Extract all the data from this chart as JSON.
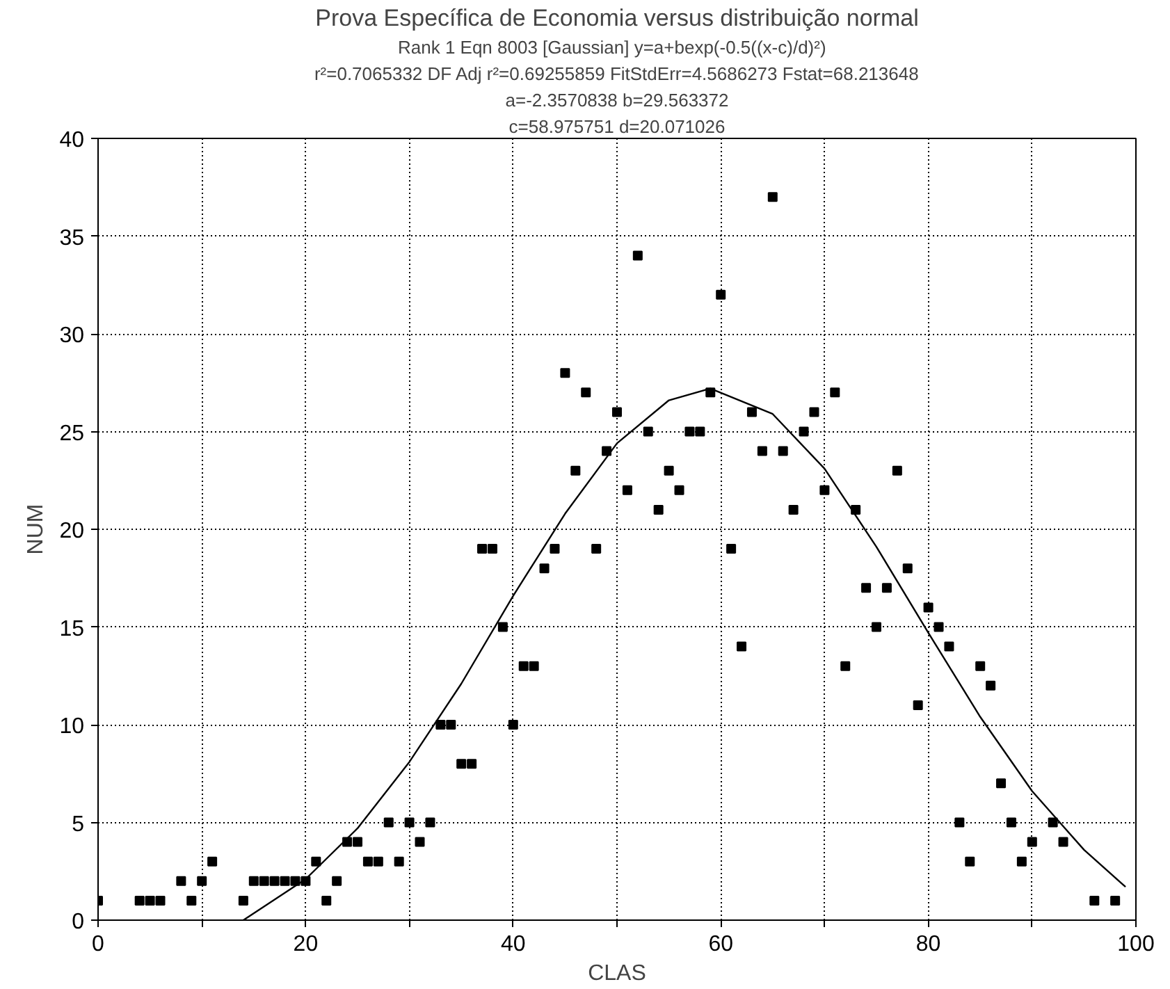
{
  "chart_data": {
    "type": "scatter",
    "title": "Prova Específica de Economia versus distribuição normal",
    "subtitle": "Rank 1  Eqn 8003  [Gaussian] y=a+bexp(-0.5((x-c)/d)²)",
    "annotations": [
      "r²=0.7065332 DF Adj r²=0.69255859 FitStdErr=4.5686273 Fstat=68.213648",
      "a=-2.3570838 b=29.563372",
      "c=58.975751 d=20.071026"
    ],
    "xlabel": "CLAS",
    "ylabel": "NUM",
    "xlim": [
      0,
      100
    ],
    "ylim": [
      0,
      40
    ],
    "xticks": [
      0,
      {
        "value": 10,
        "label": null
      },
      20,
      {
        "value": 30,
        "label": null
      },
      40,
      {
        "value": 50,
        "label": null
      },
      60,
      {
        "value": 70,
        "label": null
      },
      80,
      {
        "value": 90,
        "label": null
      },
      100
    ],
    "yticks": [
      0,
      5,
      10,
      15,
      20,
      25,
      30,
      35,
      40
    ],
    "grid": true,
    "marker": "square",
    "series": [
      {
        "color": "#000000",
        "x": [
          0,
          4,
          5,
          6,
          8,
          9,
          10,
          11,
          14,
          15,
          16,
          17,
          18,
          19,
          20,
          21,
          22,
          23,
          24,
          25,
          26,
          27,
          28,
          29,
          30,
          31,
          32,
          33,
          34,
          35,
          36,
          37,
          38,
          39,
          40,
          41,
          42,
          43,
          44,
          45,
          46,
          47,
          48,
          49,
          50,
          51,
          52,
          53,
          54,
          55,
          56,
          57,
          58,
          59,
          60,
          61,
          62,
          63,
          64,
          65,
          66,
          67,
          68,
          69,
          70,
          71,
          72,
          73,
          74,
          75,
          76,
          77,
          78,
          79,
          80,
          81,
          82,
          83,
          84,
          85,
          86,
          87,
          88,
          89,
          90,
          92,
          93,
          96,
          98
        ],
        "values": [
          1,
          1,
          1,
          1,
          2,
          1,
          2,
          3,
          1,
          2,
          2,
          2,
          2,
          2,
          2,
          3,
          1,
          2,
          4,
          4,
          3,
          3,
          5,
          3,
          5,
          4,
          5,
          10,
          10,
          8,
          8,
          19,
          19,
          15,
          10,
          13,
          13,
          18,
          19,
          28,
          23,
          27,
          19,
          24,
          26,
          22,
          34,
          25,
          21,
          23,
          22,
          25,
          25,
          27,
          32,
          19,
          14,
          26,
          24,
          37,
          24,
          21,
          25,
          26,
          22,
          27,
          13,
          21,
          17,
          15,
          17,
          23,
          18,
          11,
          16,
          15,
          14,
          5,
          3,
          13,
          12,
          7,
          5,
          3,
          4,
          5,
          4,
          1,
          1
        ]
      },
      {
        "type": "line",
        "color": "#000000",
        "line_style": "solid",
        "marker": "none",
        "x": [
          14,
          20,
          25,
          30,
          35,
          40,
          45,
          50,
          55,
          59,
          65,
          70,
          75,
          80,
          85,
          90,
          95,
          99
        ],
        "values": [
          0.0,
          2.1,
          4.7,
          8.1,
          12.1,
          16.6,
          20.8,
          24.4,
          26.6,
          27.2,
          25.9,
          23.1,
          19.1,
          14.7,
          10.4,
          6.6,
          3.6,
          1.7
        ]
      }
    ]
  }
}
